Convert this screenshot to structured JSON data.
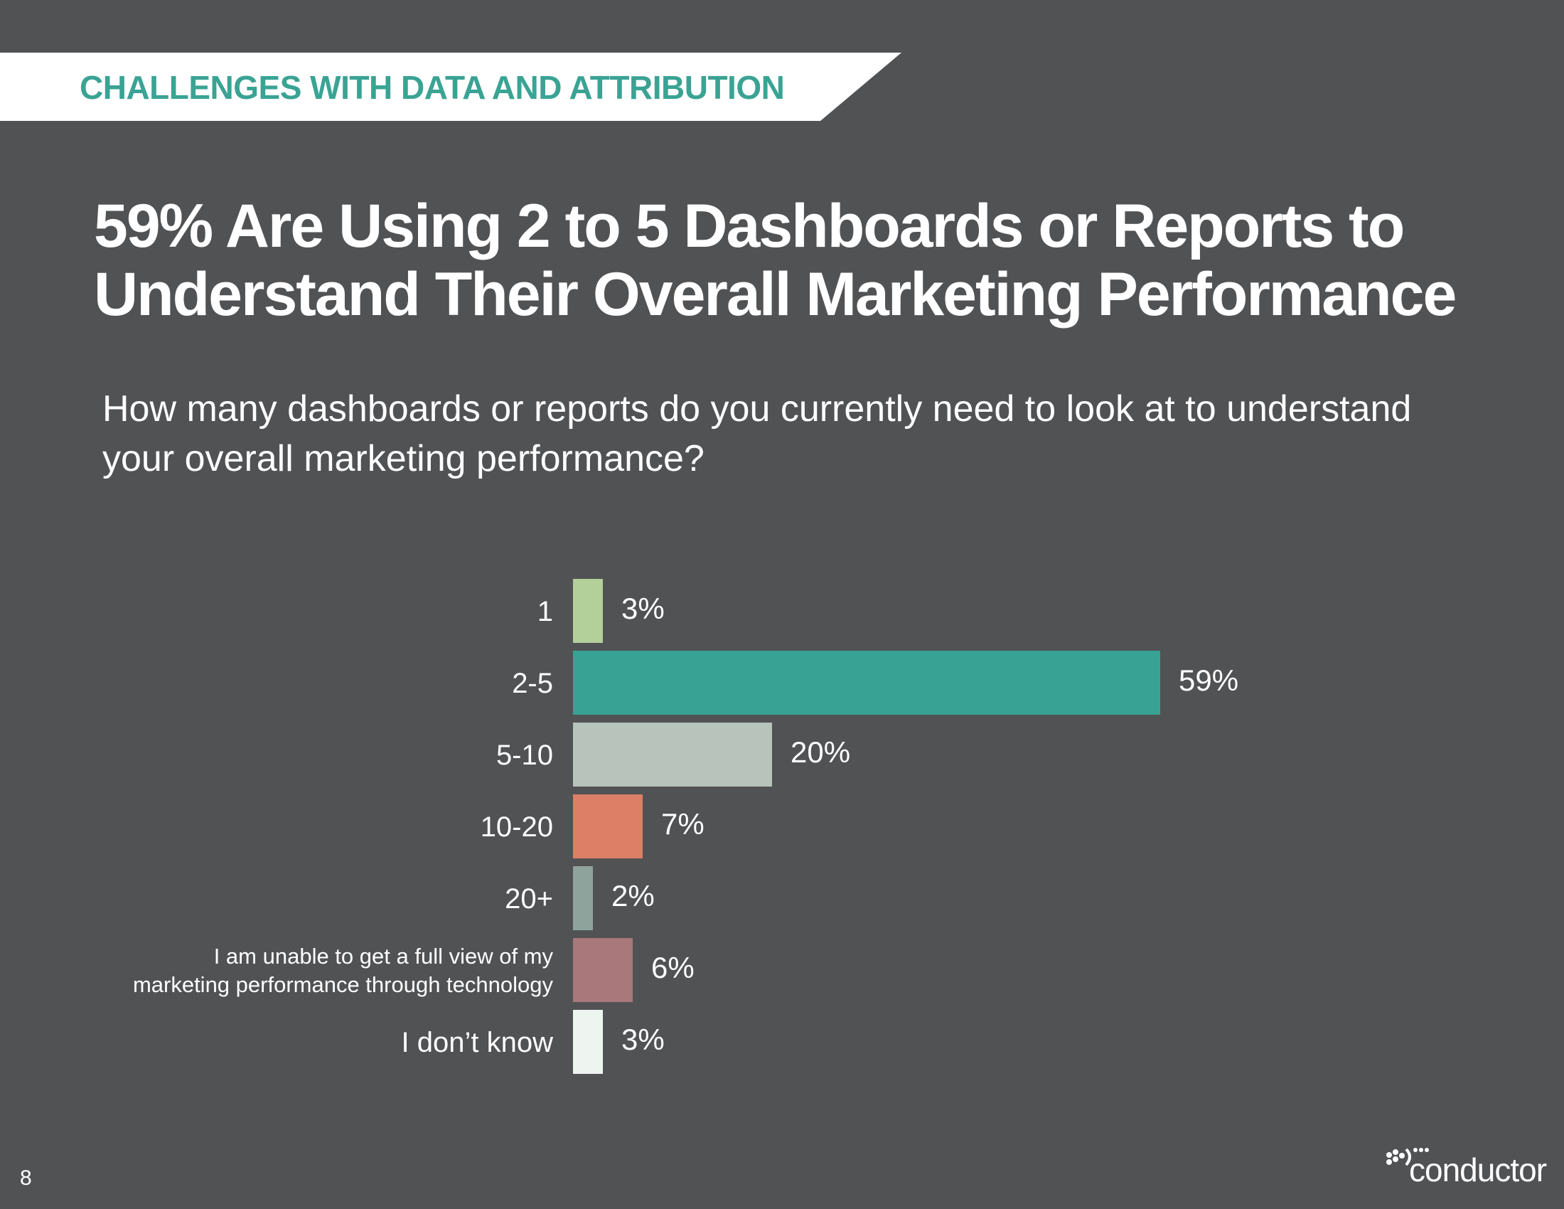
{
  "header": {
    "section_label": "CHALLENGES WITH DATA AND ATTRIBUTION"
  },
  "headline": "59% Are Using 2 to 5 Dashboards or Reports to Understand Their Overall Marketing Performance",
  "question": "How many dashboards or reports do you currently need to look at to understand your overall marketing performance?",
  "footer": {
    "page_number": "8",
    "logo_text": "conductor"
  },
  "colors": {
    "background": "#515254",
    "accent": "#3aa394",
    "banner": "#ffffff"
  },
  "chart_data": {
    "type": "bar",
    "orientation": "horizontal",
    "title": "How many dashboards or reports do you currently need to look at to understand your overall marketing performance?",
    "categories": [
      "1",
      "2-5",
      "5-10",
      "10-20",
      "20+",
      "I am unable to get a full view of my marketing performance through technology",
      "I don’t know"
    ],
    "category_lines": [
      [
        "1"
      ],
      [
        "2-5"
      ],
      [
        "5-10"
      ],
      [
        "10-20"
      ],
      [
        "20+"
      ],
      [
        "I am unable to get a full view of my",
        "marketing performance through technology"
      ],
      [
        "I don’t know"
      ]
    ],
    "values": [
      3,
      59,
      20,
      7,
      2,
      6,
      3
    ],
    "value_labels": [
      "3%",
      "59%",
      "20%",
      "7%",
      "2%",
      "6%",
      "3%"
    ],
    "bar_colors": [
      "#b3cf9a",
      "#38a394",
      "#b8c3bb",
      "#dd7f66",
      "#8fa39d",
      "#a8787a",
      "#eef5f1"
    ],
    "unit": "%",
    "xlim": [
      0,
      59
    ],
    "grid": false,
    "legend": "none"
  }
}
